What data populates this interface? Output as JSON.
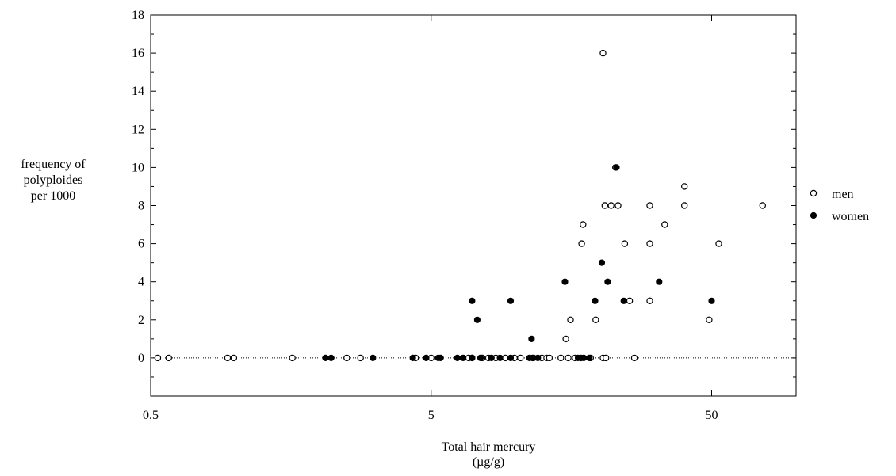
{
  "chart_data": {
    "type": "scatter",
    "title": "",
    "xlabel": "Total hair mercury",
    "xlabel_unit": "(µg/g)",
    "ylabel_lines": [
      "frequency of",
      "polyploides",
      "per 1000"
    ],
    "x_scale": "log",
    "xlim": [
      0.5,
      100
    ],
    "ylim": [
      -2,
      18
    ],
    "x_ticks": [
      0.5,
      5,
      50
    ],
    "x_tick_labels": [
      "0.5",
      "5",
      "50"
    ],
    "y_ticks": [
      0,
      2,
      4,
      6,
      8,
      10,
      12,
      14,
      16,
      18
    ],
    "y_tick_labels": [
      "0",
      "2",
      "4",
      "6",
      "8",
      "10",
      "12",
      "14",
      "16",
      "18"
    ],
    "reference_line": {
      "y": 0,
      "style": "dotted"
    },
    "grid": false,
    "legend_position": "right",
    "series": [
      {
        "name": "men",
        "marker": "open-circle",
        "color": "#000000",
        "points": [
          [
            0.53,
            0
          ],
          [
            0.58,
            0
          ],
          [
            0.94,
            0
          ],
          [
            0.99,
            0
          ],
          [
            1.6,
            0
          ],
          [
            2.5,
            0
          ],
          [
            2.8,
            0
          ],
          [
            4.4,
            0
          ],
          [
            5.0,
            0
          ],
          [
            6.8,
            0
          ],
          [
            7.0,
            0
          ],
          [
            7.6,
            0
          ],
          [
            8.0,
            0
          ],
          [
            8.5,
            0
          ],
          [
            9.2,
            0
          ],
          [
            9.9,
            0
          ],
          [
            10.4,
            0
          ],
          [
            11.5,
            0
          ],
          [
            12.4,
            0
          ],
          [
            12.9,
            0
          ],
          [
            13.2,
            0
          ],
          [
            14.5,
            0
          ],
          [
            15.4,
            0
          ],
          [
            16.3,
            0
          ],
          [
            17.1,
            0
          ],
          [
            18.5,
            0
          ],
          [
            20.5,
            0
          ],
          [
            21.0,
            0
          ],
          [
            26.5,
            0
          ],
          [
            15.1,
            1
          ],
          [
            15.7,
            2
          ],
          [
            19.3,
            2
          ],
          [
            49.0,
            2
          ],
          [
            25.5,
            3
          ],
          [
            30.1,
            3
          ],
          [
            17.2,
            6
          ],
          [
            24.5,
            6
          ],
          [
            30.1,
            6
          ],
          [
            53.0,
            6
          ],
          [
            17.4,
            7
          ],
          [
            34.0,
            7
          ],
          [
            20.8,
            8
          ],
          [
            21.9,
            8
          ],
          [
            23.2,
            8
          ],
          [
            30.1,
            8
          ],
          [
            40.0,
            8
          ],
          [
            76.0,
            8
          ],
          [
            40.0,
            9
          ],
          [
            22.7,
            10
          ],
          [
            20.5,
            16
          ]
        ]
      },
      {
        "name": "women",
        "marker": "filled-circle",
        "color": "#000000",
        "points": [
          [
            2.1,
            0
          ],
          [
            2.2,
            0
          ],
          [
            3.1,
            0
          ],
          [
            4.3,
            0
          ],
          [
            4.8,
            0
          ],
          [
            5.3,
            0
          ],
          [
            5.4,
            0
          ],
          [
            6.2,
            0
          ],
          [
            6.5,
            0
          ],
          [
            7.0,
            0
          ],
          [
            7.5,
            0
          ],
          [
            8.2,
            0
          ],
          [
            8.8,
            0
          ],
          [
            9.6,
            0
          ],
          [
            11.2,
            0
          ],
          [
            11.6,
            0
          ],
          [
            12.0,
            0
          ],
          [
            16.7,
            0
          ],
          [
            17.5,
            0
          ],
          [
            18.3,
            0
          ],
          [
            7.3,
            2
          ],
          [
            7.0,
            3
          ],
          [
            9.6,
            3
          ],
          [
            19.2,
            3
          ],
          [
            24.3,
            3
          ],
          [
            50.0,
            3
          ],
          [
            11.4,
            1
          ],
          [
            15.0,
            4
          ],
          [
            21.3,
            4
          ],
          [
            32.5,
            4
          ],
          [
            20.3,
            5
          ],
          [
            22.9,
            10
          ]
        ]
      }
    ]
  }
}
